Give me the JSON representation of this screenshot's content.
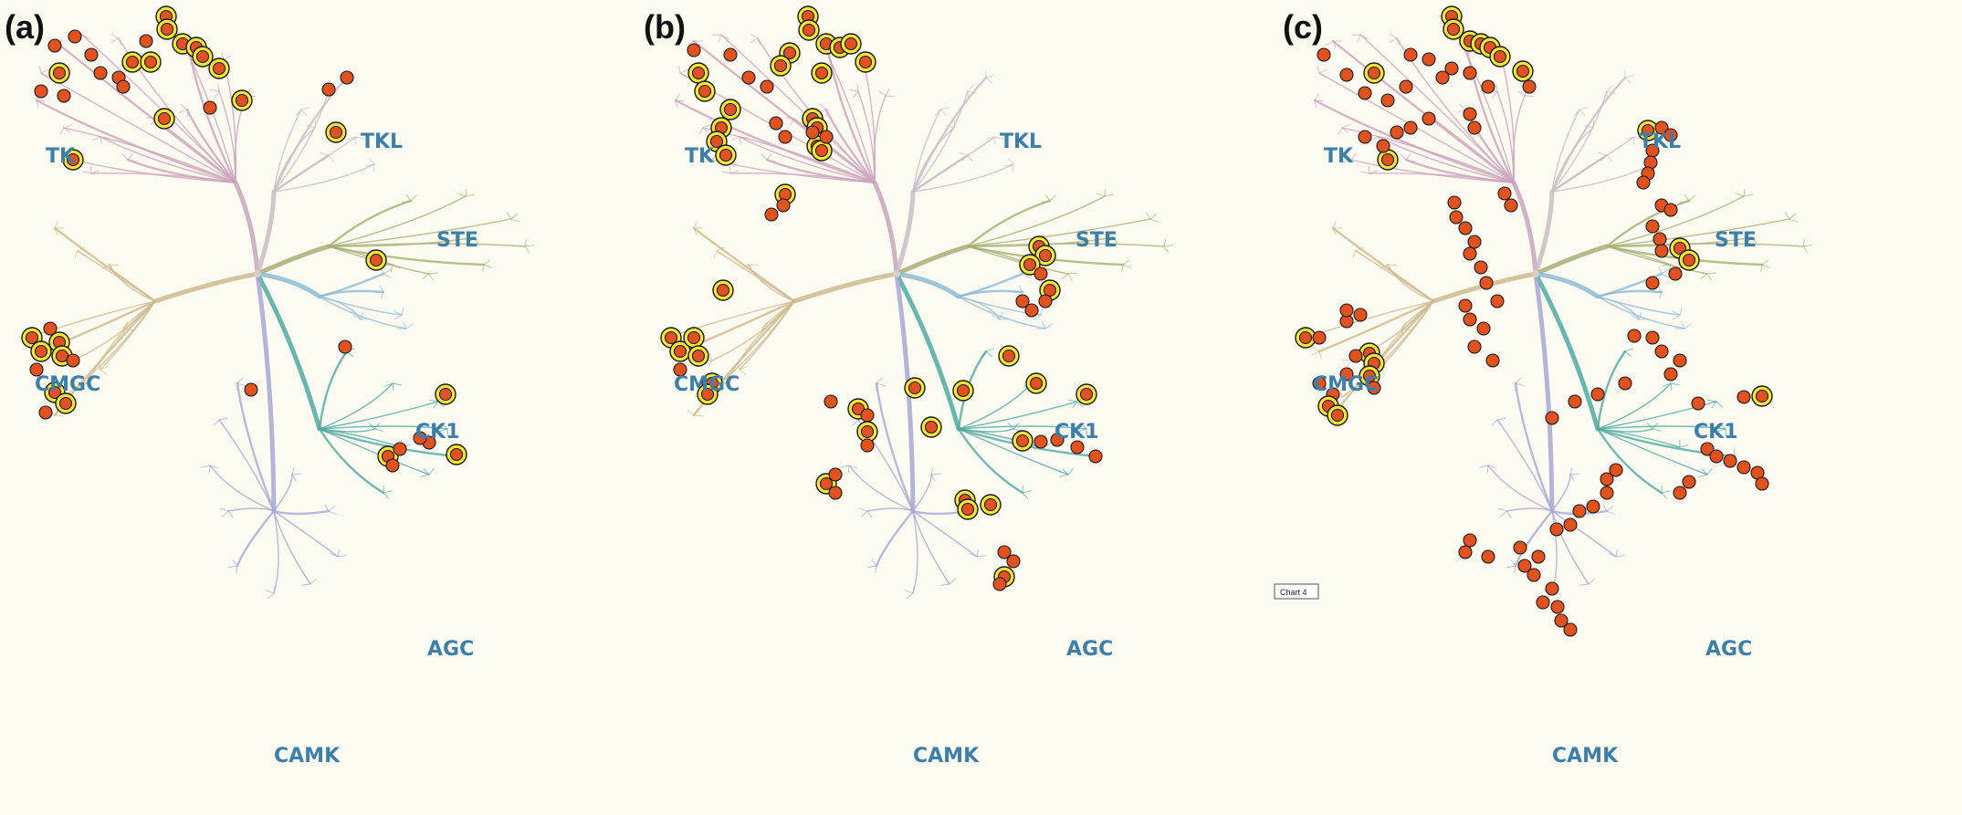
{
  "figure": {
    "panels": [
      {
        "id": "a",
        "label": "(a)"
      },
      {
        "id": "b",
        "label": "(b)"
      },
      {
        "id": "c",
        "label": "(c)"
      }
    ],
    "groups": [
      {
        "id": "TK",
        "label": "TK",
        "color": "#c9a4bc"
      },
      {
        "id": "TKL",
        "label": "TKL",
        "color": "#c7bdc6"
      },
      {
        "id": "STE",
        "label": "STE",
        "color": "#a9ad74"
      },
      {
        "id": "CK1",
        "label": "CK1",
        "color": "#8cbcd6"
      },
      {
        "id": "AGC",
        "label": "AGC",
        "color": "#4fa9a0"
      },
      {
        "id": "CAMK",
        "label": "CAMK",
        "color": "#a7a7d1"
      },
      {
        "id": "CMGC",
        "label": "CMGC",
        "color": "#cdb98e"
      }
    ],
    "label_color": "#3d7fa8",
    "hit_color": "#e2521f",
    "halo_color": "#f5e63a",
    "tooltip_c": "Chart 4"
  }
}
